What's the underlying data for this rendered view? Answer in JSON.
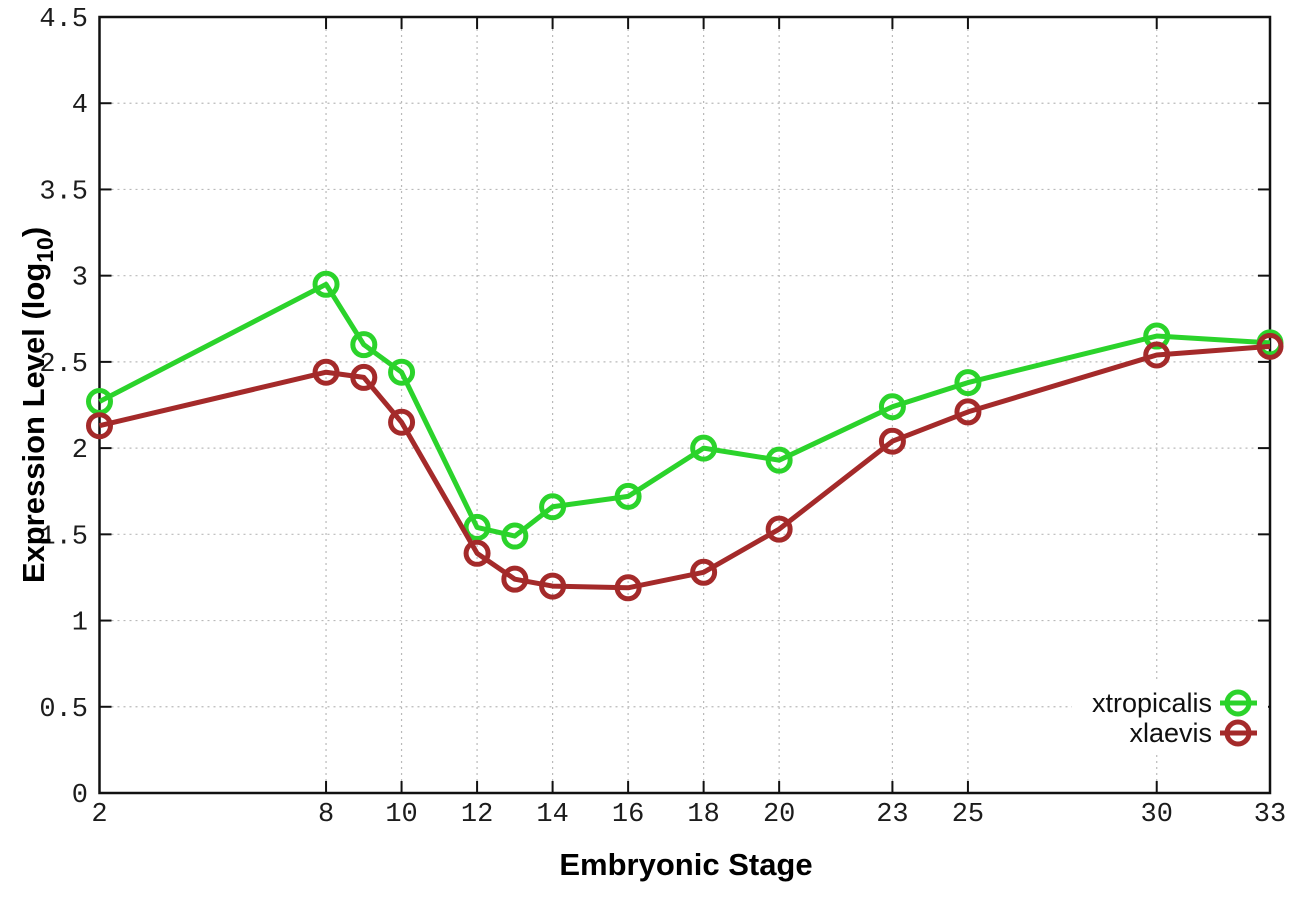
{
  "chart_data": {
    "type": "line",
    "title": "",
    "xlabel": "Embryonic Stage",
    "ylabel": "Expression Level (log10)",
    "ylabel_parts": {
      "prefix": "Expression Level (log",
      "sub": "10",
      "suffix": ")"
    },
    "xlim": [
      2,
      33
    ],
    "ylim": [
      0,
      4.5
    ],
    "grid": true,
    "legend_position": "bottom-right",
    "x": [
      2,
      8,
      9,
      10,
      12,
      13,
      14,
      16,
      18,
      20,
      23,
      25,
      30,
      33
    ],
    "xticks": [
      2,
      8,
      10,
      12,
      14,
      16,
      18,
      20,
      23,
      25,
      30,
      33
    ],
    "xtick_labels": [
      "2",
      "8",
      "10",
      "12",
      "14",
      "16",
      "18",
      "20",
      "23",
      "25",
      "30",
      "33"
    ],
    "yticks": [
      0,
      0.5,
      1,
      1.5,
      2,
      2.5,
      3,
      3.5,
      4,
      4.5
    ],
    "ytick_labels": [
      "0",
      "0.5",
      "1",
      "1.5",
      "2",
      "2.5",
      "3",
      "3.5",
      "4",
      "4.5"
    ],
    "series": [
      {
        "name": "xtropicalis",
        "color": "#2bd32b",
        "values": [
          2.27,
          2.95,
          2.6,
          2.44,
          1.54,
          1.49,
          1.66,
          1.72,
          2.0,
          1.93,
          2.24,
          2.38,
          2.65,
          2.61
        ]
      },
      {
        "name": "xlaevis",
        "color": "#a42a2a",
        "values": [
          2.13,
          2.44,
          2.41,
          2.15,
          1.39,
          1.24,
          1.2,
          1.19,
          1.28,
          1.53,
          2.04,
          2.21,
          2.54,
          2.59
        ]
      }
    ]
  }
}
